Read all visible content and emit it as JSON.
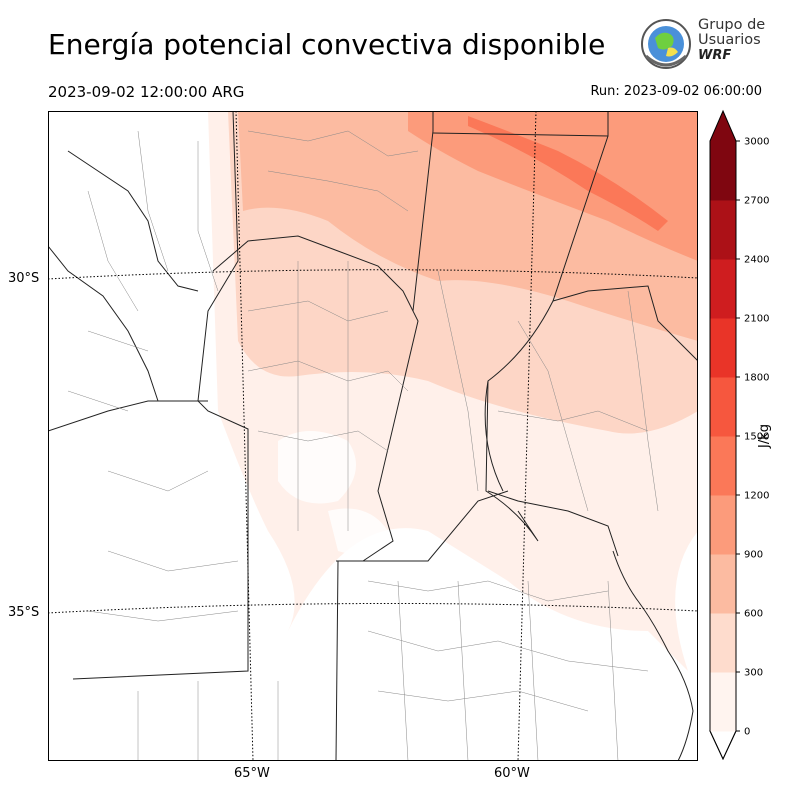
{
  "title": "Energía potencial convectiva disponible",
  "valid_time": "2023-09-02 12:00:00 ARG",
  "run_time": "Run: 2023-09-02 06:00:00",
  "logo": {
    "line1": "Grupo de",
    "line2": "Usuarios",
    "line3": "WRF"
  },
  "map": {
    "lat_labels": [
      "30°S",
      "35°S"
    ],
    "lon_labels": [
      "65°W",
      "60°W"
    ]
  },
  "colorbar": {
    "label": "J/kg",
    "ticks": [
      "0",
      "300",
      "600",
      "900",
      "1200",
      "1500",
      "1800",
      "2100",
      "2400",
      "2700",
      "3000"
    ],
    "colors": [
      "#fff4ef",
      "#fedccd",
      "#fcbba1",
      "#fc9b7b",
      "#fb7858",
      "#f6573e",
      "#e93428",
      "#cf1d1f",
      "#ac1117",
      "#7f0610"
    ]
  }
}
